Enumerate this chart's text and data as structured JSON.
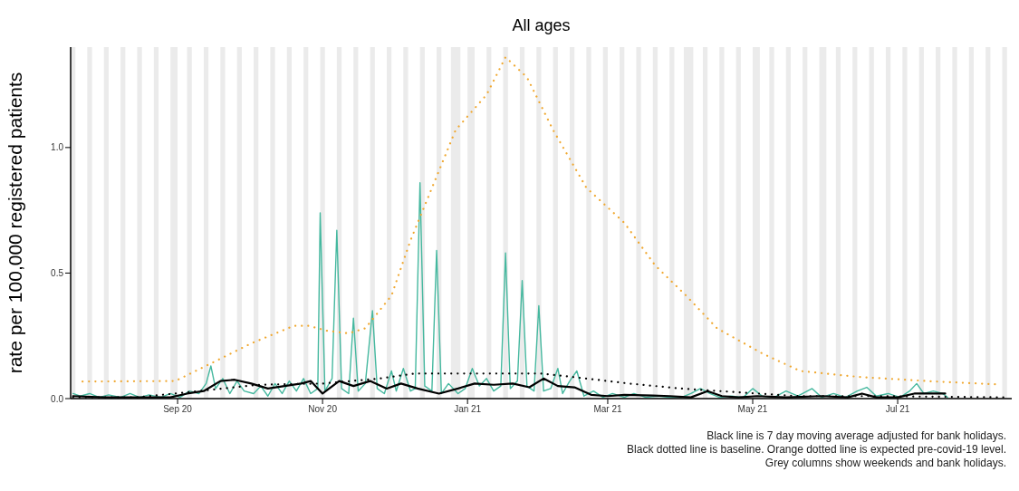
{
  "chart_data": {
    "type": "line",
    "title": "All ages",
    "ylabel": "rate per 100,000 registered patients",
    "annotations": [
      "Black line is 7 day moving average adjusted for bank holidays.",
      "Black dotted line is baseline. Orange dotted line is expected pre-covid-19 level.",
      "Grey columns show weekends and bank holidays."
    ],
    "xlim": [
      "2020-07-18",
      "2021-08-18"
    ],
    "xticks": [
      {
        "value": "2020-09-01",
        "label": "Sep 20"
      },
      {
        "value": "2020-11-01",
        "label": "Nov 20"
      },
      {
        "value": "2021-01-01",
        "label": "Jan 21"
      },
      {
        "value": "2021-03-01",
        "label": "Mar 21"
      },
      {
        "value": "2021-05-01",
        "label": "May 21"
      },
      {
        "value": "2021-07-01",
        "label": "Jul 21"
      }
    ],
    "ylim": [
      0,
      1.4
    ],
    "yticks": [
      {
        "value": 0,
        "label": "0.0"
      },
      {
        "value": 0.5,
        "label": "0.5"
      },
      {
        "value": 1,
        "label": "1.0"
      }
    ],
    "grid": false,
    "marker": "none",
    "series": [
      {
        "color": "#45b89f",
        "line_style": "solid",
        "x": [
          "2020-07-19",
          "2020-07-22",
          "2020-07-26",
          "2020-07-30",
          "2020-08-03",
          "2020-08-08",
          "2020-08-12",
          "2020-08-16",
          "2020-08-20",
          "2020-08-25",
          "2020-08-29",
          "2020-09-02",
          "2020-09-06",
          "2020-09-10",
          "2020-09-13",
          "2020-09-15",
          "2020-09-17",
          "2020-09-20",
          "2020-09-23",
          "2020-09-26",
          "2020-09-29",
          "2020-10-03",
          "2020-10-06",
          "2020-10-09",
          "2020-10-12",
          "2020-10-15",
          "2020-10-18",
          "2020-10-21",
          "2020-10-24",
          "2020-10-27",
          "2020-10-30",
          "2020-10-31",
          "2020-11-02",
          "2020-11-05",
          "2020-11-07",
          "2020-11-09",
          "2020-11-12",
          "2020-11-14",
          "2020-11-16",
          "2020-11-19",
          "2020-11-22",
          "2020-11-24",
          "2020-11-27",
          "2020-11-30",
          "2020-12-02",
          "2020-12-05",
          "2020-12-08",
          "2020-12-10",
          "2020-12-12",
          "2020-12-14",
          "2020-12-17",
          "2020-12-19",
          "2020-12-21",
          "2020-12-24",
          "2020-12-28",
          "2020-12-31",
          "2021-01-03",
          "2021-01-06",
          "2021-01-09",
          "2021-01-12",
          "2021-01-15",
          "2021-01-17",
          "2021-01-19",
          "2021-01-22",
          "2021-01-24",
          "2021-01-26",
          "2021-01-29",
          "2021-01-31",
          "2021-02-02",
          "2021-02-05",
          "2021-02-08",
          "2021-02-10",
          "2021-02-13",
          "2021-02-16",
          "2021-02-19",
          "2021-02-23",
          "2021-02-27",
          "2021-03-03",
          "2021-03-08",
          "2021-03-12",
          "2021-03-17",
          "2021-03-22",
          "2021-03-27",
          "2021-04-01",
          "2021-04-05",
          "2021-04-09",
          "2021-04-13",
          "2021-04-17",
          "2021-04-22",
          "2021-04-27",
          "2021-05-01",
          "2021-05-05",
          "2021-05-10",
          "2021-05-15",
          "2021-05-20",
          "2021-05-26",
          "2021-05-30",
          "2021-06-04",
          "2021-06-09",
          "2021-06-14",
          "2021-06-18",
          "2021-06-22",
          "2021-06-27",
          "2021-07-02",
          "2021-07-06",
          "2021-07-09",
          "2021-07-12",
          "2021-07-16",
          "2021-07-20",
          "2021-07-22"
        ],
        "values": [
          0.02,
          0.01,
          0.02,
          0.005,
          0.015,
          0.005,
          0.02,
          0.005,
          0.015,
          0.005,
          0.02,
          0.005,
          0.03,
          0.02,
          0.06,
          0.13,
          0.04,
          0.08,
          0.02,
          0.07,
          0.03,
          0.02,
          0.05,
          0.01,
          0.06,
          0.02,
          0.07,
          0.03,
          0.08,
          0.02,
          0.04,
          0.74,
          0.03,
          0.08,
          0.67,
          0.04,
          0.02,
          0.32,
          0.03,
          0.06,
          0.35,
          0.04,
          0.02,
          0.11,
          0.03,
          0.12,
          0.03,
          0.04,
          0.86,
          0.05,
          0.03,
          0.59,
          0.02,
          0.06,
          0.02,
          0.04,
          0.12,
          0.05,
          0.08,
          0.03,
          0.05,
          0.58,
          0.04,
          0.07,
          0.47,
          0.05,
          0.03,
          0.37,
          0.03,
          0.04,
          0.12,
          0.02,
          0.07,
          0.11,
          0.01,
          0.03,
          0.005,
          0.02,
          0.005,
          0.02,
          0.005,
          0.01,
          0.005,
          0.005,
          0.02,
          0.04,
          0.02,
          0.005,
          0.01,
          0.005,
          0.04,
          0.01,
          0.005,
          0.03,
          0.01,
          0.04,
          0.005,
          0.02,
          0.005,
          0.03,
          0.045,
          0.01,
          0.02,
          0.005,
          0.03,
          0.06,
          0.02,
          0.03,
          0.02,
          0.005
        ]
      },
      {
        "color": "#000000",
        "line_style": "dotted",
        "x": [
          "2020-07-19",
          "2020-08-15",
          "2020-09-10",
          "2020-10-05",
          "2020-11-01",
          "2020-11-25",
          "2020-12-10",
          "2021-01-01",
          "2021-02-01",
          "2021-02-20",
          "2021-03-10",
          "2021-04-01",
          "2021-04-25",
          "2021-05-20",
          "2021-06-20",
          "2021-08-15"
        ],
        "values": [
          0.005,
          0.005,
          0.03,
          0.055,
          0.06,
          0.08,
          0.1,
          0.1,
          0.1,
          0.08,
          0.06,
          0.04,
          0.025,
          0.01,
          0.01,
          0.005
        ]
      },
      {
        "color": "#f0a830",
        "line_style": "dotted",
        "x": [
          "2020-07-23",
          "2020-08-31",
          "2020-09-15",
          "2020-10-02",
          "2020-10-20",
          "2020-10-26",
          "2020-11-03",
          "2020-11-12",
          "2020-11-19",
          "2020-11-30",
          "2020-12-08",
          "2020-12-27",
          "2021-01-09",
          "2021-01-17",
          "2021-01-26",
          "2021-02-06",
          "2021-02-20",
          "2021-03-08",
          "2021-03-21",
          "2021-04-03",
          "2021-04-16",
          "2021-05-05",
          "2021-05-21",
          "2021-06-15",
          "2021-07-17",
          "2021-08-11"
        ],
        "values": [
          0.068,
          0.07,
          0.14,
          0.22,
          0.29,
          0.29,
          0.27,
          0.26,
          0.28,
          0.41,
          0.63,
          1.07,
          1.21,
          1.36,
          1.28,
          1.07,
          0.84,
          0.7,
          0.53,
          0.41,
          0.28,
          0.18,
          0.11,
          0.086,
          0.068,
          0.057
        ]
      },
      {
        "color": "#000000",
        "line_style": "solid",
        "x": [
          "2020-07-19",
          "2020-08-01",
          "2020-08-15",
          "2020-08-29",
          "2020-09-05",
          "2020-09-12",
          "2020-09-19",
          "2020-09-25",
          "2020-10-02",
          "2020-10-09",
          "2020-10-16",
          "2020-10-23",
          "2020-10-27",
          "2020-11-01",
          "2020-11-08",
          "2020-11-14",
          "2020-11-21",
          "2020-11-28",
          "2020-12-04",
          "2020-12-11",
          "2020-12-20",
          "2020-12-28",
          "2021-01-04",
          "2021-01-12",
          "2021-01-20",
          "2021-01-27",
          "2021-02-02",
          "2021-02-08",
          "2021-02-15",
          "2021-02-22",
          "2021-03-01",
          "2021-03-08",
          "2021-03-20",
          "2021-03-27",
          "2021-04-05",
          "2021-04-12",
          "2021-04-18",
          "2021-04-25",
          "2021-05-03",
          "2021-05-15",
          "2021-05-30",
          "2021-06-10",
          "2021-06-16",
          "2021-06-22",
          "2021-07-01",
          "2021-07-08",
          "2021-07-15",
          "2021-07-21"
        ],
        "values": [
          0.01,
          0.005,
          0.005,
          0.005,
          0.02,
          0.03,
          0.07,
          0.075,
          0.06,
          0.04,
          0.05,
          0.06,
          0.07,
          0.02,
          0.07,
          0.05,
          0.07,
          0.04,
          0.06,
          0.04,
          0.02,
          0.04,
          0.06,
          0.055,
          0.06,
          0.045,
          0.08,
          0.05,
          0.045,
          0.015,
          0.01,
          0.015,
          0.012,
          0.01,
          0.005,
          0.03,
          0.01,
          0.005,
          0.01,
          0.005,
          0.01,
          0.005,
          0.02,
          0.005,
          0.005,
          0.02,
          0.02,
          0.02
        ]
      }
    ],
    "bands": [
      {
        "axis": "x",
        "from": "2020-07-18",
        "to": "2020-07-20",
        "color": "#ebebeb"
      },
      {
        "axis": "x",
        "from": "2020-07-25",
        "to": "2020-07-27",
        "color": "#ebebeb"
      },
      {
        "axis": "x",
        "from": "2020-08-01",
        "to": "2020-08-03",
        "color": "#ebebeb"
      },
      {
        "axis": "x",
        "from": "2020-08-08",
        "to": "2020-08-10",
        "color": "#ebebeb"
      },
      {
        "axis": "x",
        "from": "2020-08-15",
        "to": "2020-08-17",
        "color": "#ebebeb"
      },
      {
        "axis": "x",
        "from": "2020-08-22",
        "to": "2020-08-24",
        "color": "#ebebeb"
      },
      {
        "axis": "x",
        "from": "2020-08-29",
        "to": "2020-09-01",
        "color": "#ebebeb"
      },
      {
        "axis": "x",
        "from": "2020-09-05",
        "to": "2020-09-07",
        "color": "#ebebeb"
      },
      {
        "axis": "x",
        "from": "2020-09-12",
        "to": "2020-09-14",
        "color": "#ebebeb"
      },
      {
        "axis": "x",
        "from": "2020-09-19",
        "to": "2020-09-21",
        "color": "#ebebeb"
      },
      {
        "axis": "x",
        "from": "2020-09-26",
        "to": "2020-09-28",
        "color": "#ebebeb"
      },
      {
        "axis": "x",
        "from": "2020-10-03",
        "to": "2020-10-05",
        "color": "#ebebeb"
      },
      {
        "axis": "x",
        "from": "2020-10-10",
        "to": "2020-10-12",
        "color": "#ebebeb"
      },
      {
        "axis": "x",
        "from": "2020-10-17",
        "to": "2020-10-19",
        "color": "#ebebeb"
      },
      {
        "axis": "x",
        "from": "2020-10-24",
        "to": "2020-10-26",
        "color": "#ebebeb"
      },
      {
        "axis": "x",
        "from": "2020-10-31",
        "to": "2020-11-02",
        "color": "#ebebeb"
      },
      {
        "axis": "x",
        "from": "2020-11-07",
        "to": "2020-11-09",
        "color": "#ebebeb"
      },
      {
        "axis": "x",
        "from": "2020-11-14",
        "to": "2020-11-16",
        "color": "#ebebeb"
      },
      {
        "axis": "x",
        "from": "2020-11-21",
        "to": "2020-11-23",
        "color": "#ebebeb"
      },
      {
        "axis": "x",
        "from": "2020-11-28",
        "to": "2020-11-30",
        "color": "#ebebeb"
      },
      {
        "axis": "x",
        "from": "2020-12-05",
        "to": "2020-12-07",
        "color": "#ebebeb"
      },
      {
        "axis": "x",
        "from": "2020-12-12",
        "to": "2020-12-14",
        "color": "#ebebeb"
      },
      {
        "axis": "x",
        "from": "2020-12-19",
        "to": "2020-12-21",
        "color": "#ebebeb"
      },
      {
        "axis": "x",
        "from": "2020-12-25",
        "to": "2020-12-29",
        "color": "#ebebeb"
      },
      {
        "axis": "x",
        "from": "2021-01-01",
        "to": "2021-01-04",
        "color": "#ebebeb"
      },
      {
        "axis": "x",
        "from": "2021-01-09",
        "to": "2021-01-11",
        "color": "#ebebeb"
      },
      {
        "axis": "x",
        "from": "2021-01-16",
        "to": "2021-01-18",
        "color": "#ebebeb"
      },
      {
        "axis": "x",
        "from": "2021-01-23",
        "to": "2021-01-25",
        "color": "#ebebeb"
      },
      {
        "axis": "x",
        "from": "2021-01-30",
        "to": "2021-02-01",
        "color": "#ebebeb"
      },
      {
        "axis": "x",
        "from": "2021-02-06",
        "to": "2021-02-08",
        "color": "#ebebeb"
      },
      {
        "axis": "x",
        "from": "2021-02-13",
        "to": "2021-02-15",
        "color": "#ebebeb"
      },
      {
        "axis": "x",
        "from": "2021-02-20",
        "to": "2021-02-22",
        "color": "#ebebeb"
      },
      {
        "axis": "x",
        "from": "2021-02-27",
        "to": "2021-03-01",
        "color": "#ebebeb"
      },
      {
        "axis": "x",
        "from": "2021-03-06",
        "to": "2021-03-08",
        "color": "#ebebeb"
      },
      {
        "axis": "x",
        "from": "2021-03-13",
        "to": "2021-03-15",
        "color": "#ebebeb"
      },
      {
        "axis": "x",
        "from": "2021-03-20",
        "to": "2021-03-22",
        "color": "#ebebeb"
      },
      {
        "axis": "x",
        "from": "2021-03-27",
        "to": "2021-03-29",
        "color": "#ebebeb"
      },
      {
        "axis": "x",
        "from": "2021-04-02",
        "to": "2021-04-06",
        "color": "#ebebeb"
      },
      {
        "axis": "x",
        "from": "2021-04-10",
        "to": "2021-04-12",
        "color": "#ebebeb"
      },
      {
        "axis": "x",
        "from": "2021-04-17",
        "to": "2021-04-19",
        "color": "#ebebeb"
      },
      {
        "axis": "x",
        "from": "2021-04-24",
        "to": "2021-04-26",
        "color": "#ebebeb"
      },
      {
        "axis": "x",
        "from": "2021-05-01",
        "to": "2021-05-04",
        "color": "#ebebeb"
      },
      {
        "axis": "x",
        "from": "2021-05-08",
        "to": "2021-05-10",
        "color": "#ebebeb"
      },
      {
        "axis": "x",
        "from": "2021-05-15",
        "to": "2021-05-17",
        "color": "#ebebeb"
      },
      {
        "axis": "x",
        "from": "2021-05-22",
        "to": "2021-05-24",
        "color": "#ebebeb"
      },
      {
        "axis": "x",
        "from": "2021-05-29",
        "to": "2021-06-01",
        "color": "#ebebeb"
      },
      {
        "axis": "x",
        "from": "2021-06-05",
        "to": "2021-06-07",
        "color": "#ebebeb"
      },
      {
        "axis": "x",
        "from": "2021-06-12",
        "to": "2021-06-14",
        "color": "#ebebeb"
      },
      {
        "axis": "x",
        "from": "2021-06-19",
        "to": "2021-06-21",
        "color": "#ebebeb"
      },
      {
        "axis": "x",
        "from": "2021-06-26",
        "to": "2021-06-28",
        "color": "#ebebeb"
      },
      {
        "axis": "x",
        "from": "2021-07-03",
        "to": "2021-07-05",
        "color": "#ebebeb"
      },
      {
        "axis": "x",
        "from": "2021-07-10",
        "to": "2021-07-12",
        "color": "#ebebeb"
      },
      {
        "axis": "x",
        "from": "2021-07-17",
        "to": "2021-07-19",
        "color": "#ebebeb"
      },
      {
        "axis": "x",
        "from": "2021-07-24",
        "to": "2021-07-26",
        "color": "#ebebeb"
      },
      {
        "axis": "x",
        "from": "2021-07-31",
        "to": "2021-08-02",
        "color": "#ebebeb"
      },
      {
        "axis": "x",
        "from": "2021-08-07",
        "to": "2021-08-09",
        "color": "#ebebeb"
      },
      {
        "axis": "x",
        "from": "2021-08-14",
        "to": "2021-08-16",
        "color": "#ebebeb"
      }
    ]
  }
}
